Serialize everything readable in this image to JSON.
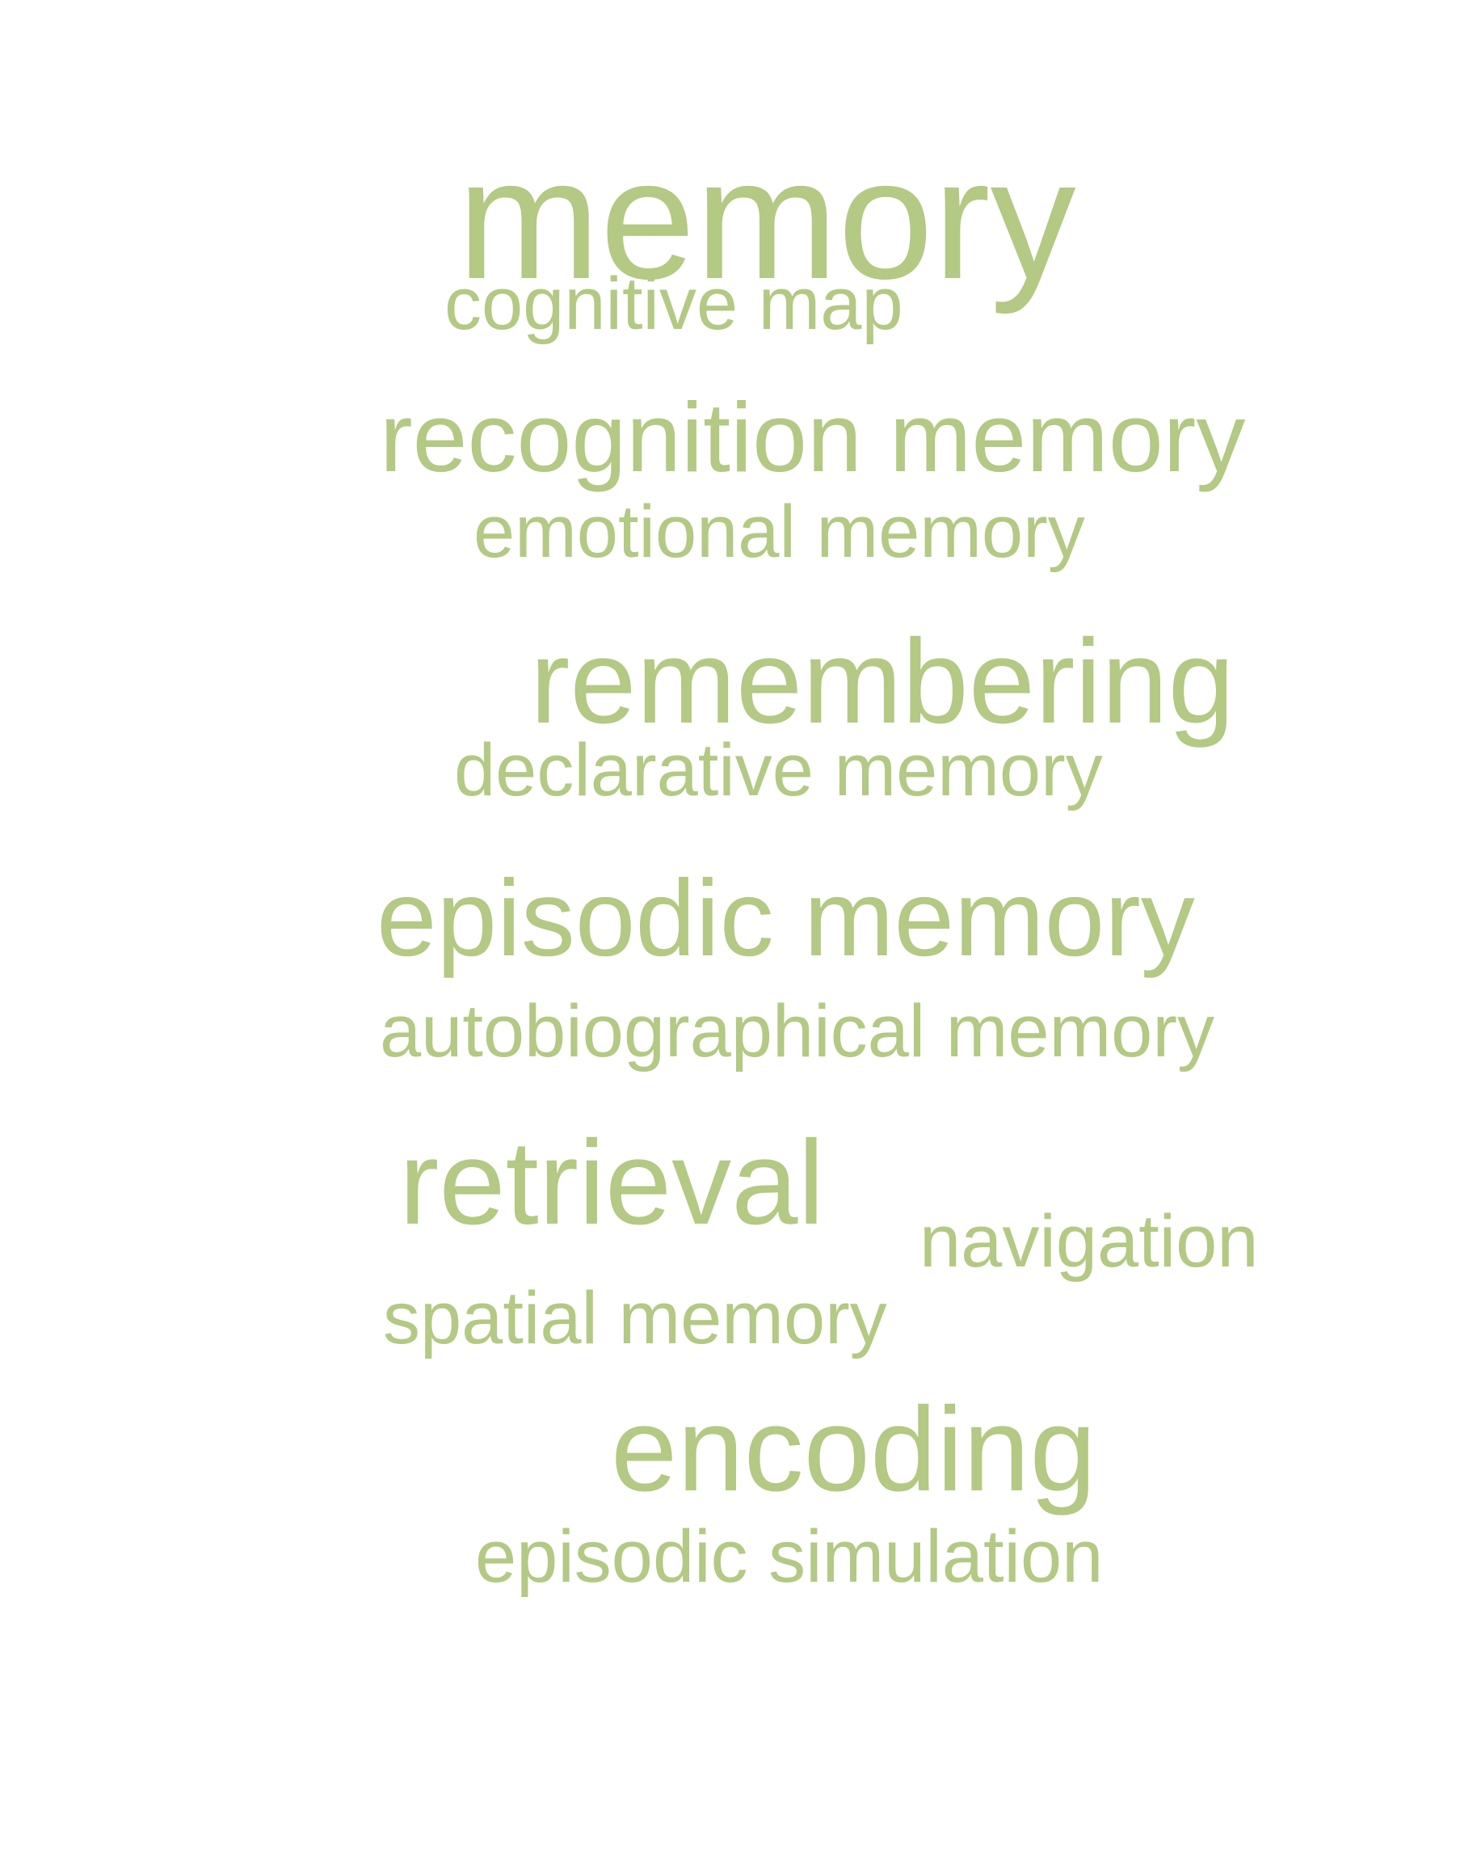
{
  "word_cloud": {
    "color": "#b3c984",
    "words": {
      "memory": "memory",
      "cognitive_map": "cognitive map",
      "recognition_memory": "recognition memory",
      "emotional_memory": "emotional memory",
      "remembering": "remembering",
      "declarative_memory": "declarative memory",
      "episodic_memory": "episodic memory",
      "autobiographical_memory": "autobiographical memory",
      "retrieval": "retrieval",
      "navigation": "navigation",
      "spatial_memory": "spatial memory",
      "encoding": "encoding",
      "episodic_simulation": "episodic simulation"
    }
  }
}
